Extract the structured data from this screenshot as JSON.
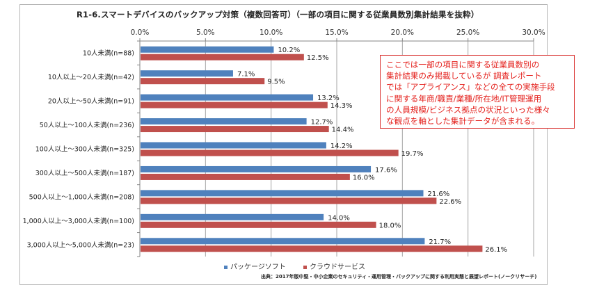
{
  "chart_data": {
    "type": "bar",
    "orientation": "horizontal",
    "title": "R1-6.スマートデバイスのバックアップ対策（複数回答可）（一部の項目に関する従業員数別集計結果を抜粋）",
    "xlabel": "",
    "ylabel": "",
    "xlim": [
      0,
      30
    ],
    "x_ticks": [
      "0.0%",
      "5.0%",
      "10.0%",
      "15.0%",
      "20.0%",
      "25.0%",
      "30.0%"
    ],
    "grid": true,
    "legend_position": "bottom",
    "categories": [
      "10人未満(n=88)",
      "10人以上～20人未満(n=42)",
      "20人以上～50人未満(n=91)",
      "50人以上～100人未満(n=236)",
      "100人以上～300人未満(n=325)",
      "300人以上～500人未満(n=187)",
      "500人以上～1,000人未満(n=208)",
      "1,000人以上～3,000人未満(n=100)",
      "3,000人以上～5,000人未満(n=23)"
    ],
    "series": [
      {
        "name": "パッケージソフト",
        "color": "#4f81bd",
        "values": [
          10.2,
          7.1,
          13.2,
          12.7,
          14.2,
          17.6,
          21.6,
          14.0,
          21.7
        ]
      },
      {
        "name": "クラウドサービス",
        "color": "#c0504d",
        "values": [
          12.5,
          9.5,
          14.3,
          14.4,
          19.7,
          16.0,
          22.6,
          18.0,
          26.1
        ]
      }
    ],
    "value_suffix": "%"
  },
  "note": {
    "lines": [
      "ここでは一部の項目に関する従業員数別の",
      "集計結果のみ掲載しているが 調査レポート",
      "では「アプライアンス」などの全ての実施手段",
      "に関する年商/職責/業種/所在地/IT管理運用",
      "の人員規模/ビジネス拠点の状況といった様々",
      "な観点を軸とした集計データが含まれる。"
    ]
  },
  "source": "出典：2017年版中堅・中小企業のセキュリティ・運用管理・バックアップに関する利用実態と展望レポート(ノークリサーチ)"
}
